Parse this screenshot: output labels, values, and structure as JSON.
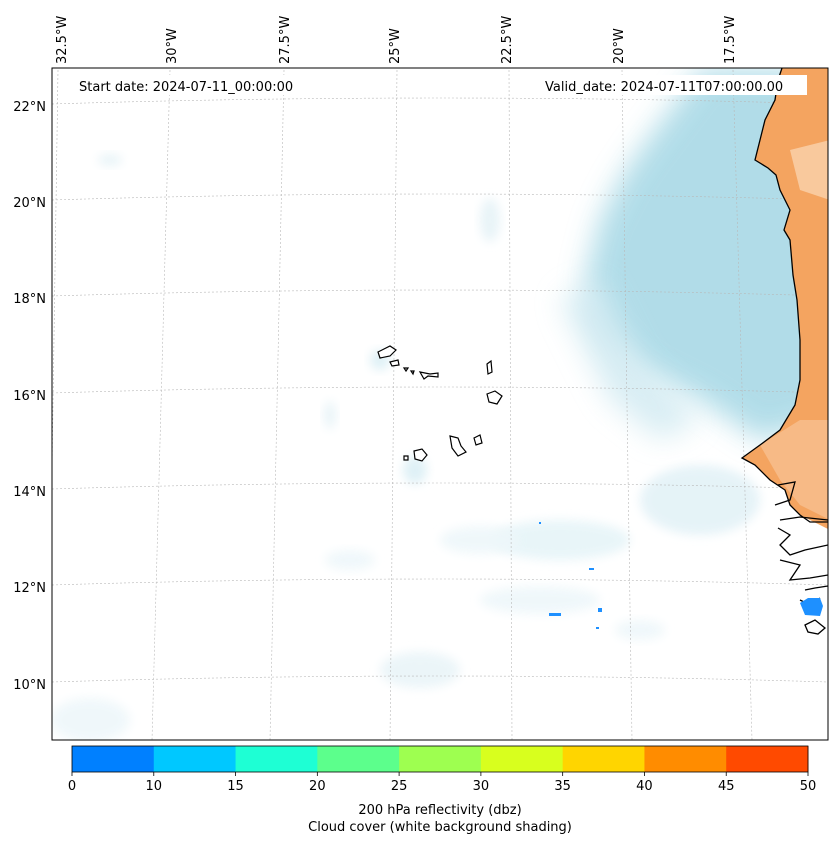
{
  "map": {
    "start_label": "Start date: 2024-07-11_00:00:00",
    "valid_label": "Valid_date: 2024-07-11T07:00:00.00",
    "lon_labels": [
      "32.5°W",
      "30°W",
      "27.5°W",
      "25°W",
      "22.5°W",
      "20°W",
      "17.5°W"
    ],
    "lat_labels": [
      "22°N",
      "20°N",
      "18°N",
      "16°N",
      "14°N",
      "12°N",
      "10°N"
    ]
  },
  "colorbar": {
    "ticks": [
      "0",
      "10",
      "15",
      "20",
      "25",
      "30",
      "35",
      "40",
      "45",
      "50"
    ],
    "colors": [
      "#0080ff",
      "#00c8ff",
      "#1effd4",
      "#5cff8c",
      "#9eff50",
      "#d8ff1e",
      "#ffd500",
      "#ff8c00",
      "#ff4a00"
    ],
    "label_line1": "200 hPa reflectivity (dbz)",
    "label_line2": "Cloud cover (white background shading)"
  },
  "colors": {
    "cloud": "#a9d9e6",
    "land_warm": "#f4a460",
    "reflectivity_low": "#1e90ff"
  }
}
